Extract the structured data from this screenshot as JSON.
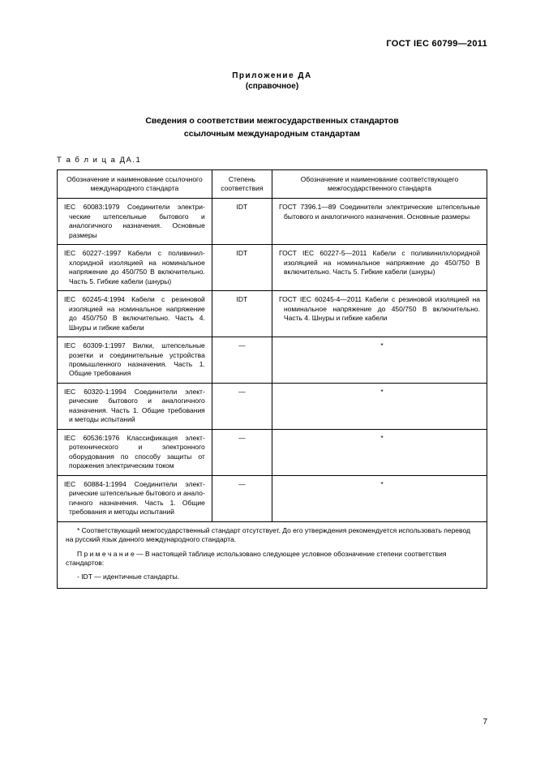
{
  "doc_id": "ГОСТ IEC 60799—2011",
  "annex": "Приложение ДА",
  "annex_sub": "(справочное)",
  "title_l1": "Сведения о соответствии межгосударственных стандартов",
  "title_l2": "ссылочным международным стандартам",
  "table_label": "Т а б л и ц а  ДА.1",
  "headers": {
    "c1": "Обозначение и наименование ссылочного международного стандарта",
    "c2": "Степень соответствия",
    "c3": "Обозначение и наименование соответствующего межгосударственного стандарта"
  },
  "rows": [
    {
      "a": "IEC 60083:1979 Соединители электри­ческие штепсельные бытового и аналогич­ного назначения. Основные размеры",
      "b": "IDT",
      "c": "ГОСТ 7396.1—89 Соединители электрические штепсельные бытового и аналогичного назначения. Основные размеры"
    },
    {
      "a": "IEC 60227-:1997 Кабели с поливинил­хлоридной изоляцией на номинальное напряжение до 450/750 В включительно. Часть 5. Гибкие кабели (шнуры)",
      "b": "IDT",
      "c": "ГОСТ IEC 60227-5—2011 Кабели с поливинил­хлоридной изоляцией на номинальное напряжение до 450/750 В включительно. Часть 5. Гибкие кабели (шнуры)"
    },
    {
      "a": "IEC 60245-4:1994 Кабели с резиновой изоляцией на номинальное напряжение до 450/750 В включительно. Часть 4. Шнуры и гибкие кабели",
      "b": "IDT",
      "c": "ГОСТ IEC 60245-4—2011 Кабели с резиновой изоляцией на номинальное напряжение до 450/750 В включительно. Часть 4. Шнуры и гибкие кабели"
    },
    {
      "a": "IEC 60309-1:1997 Вилки, штепсельные розетки и соединительные устройства про­мышленного назначения. Часть 1. Общие требования",
      "b": "—",
      "c": "*"
    },
    {
      "a": "IEC 60320-1:1994 Соединители элект­рические бытового и аналогичного назначе­ния. Часть 1. Общие требования и методы испытаний",
      "b": "—",
      "c": "*"
    },
    {
      "a": "IEC 60536:1976 Классификация элект­ротехнического и электронного оборудова­ния по способу защиты от поражения электрическим током",
      "b": "—",
      "c": "*"
    },
    {
      "a": "IEC 60884-1:1994 Соединители элект­рические штепсельные бытового и анало­гичного назначения. Часть 1. Общие требо­вания и методы испытаний",
      "b": "—",
      "c": "*"
    }
  ],
  "footnote": "* Соответствующий межгосударственный стандарт отсутствует. До его утверждения рекомендуется исполь­зовать перевод на русский язык данного международного стандарта.",
  "note_label": "П р и м е ч а н и е — В настоящей таблице использовано следующее условное обозначение степени соот­ветствия стандартов:",
  "note_item": "- IDT — идентичные стандарты.",
  "page_number": "7"
}
